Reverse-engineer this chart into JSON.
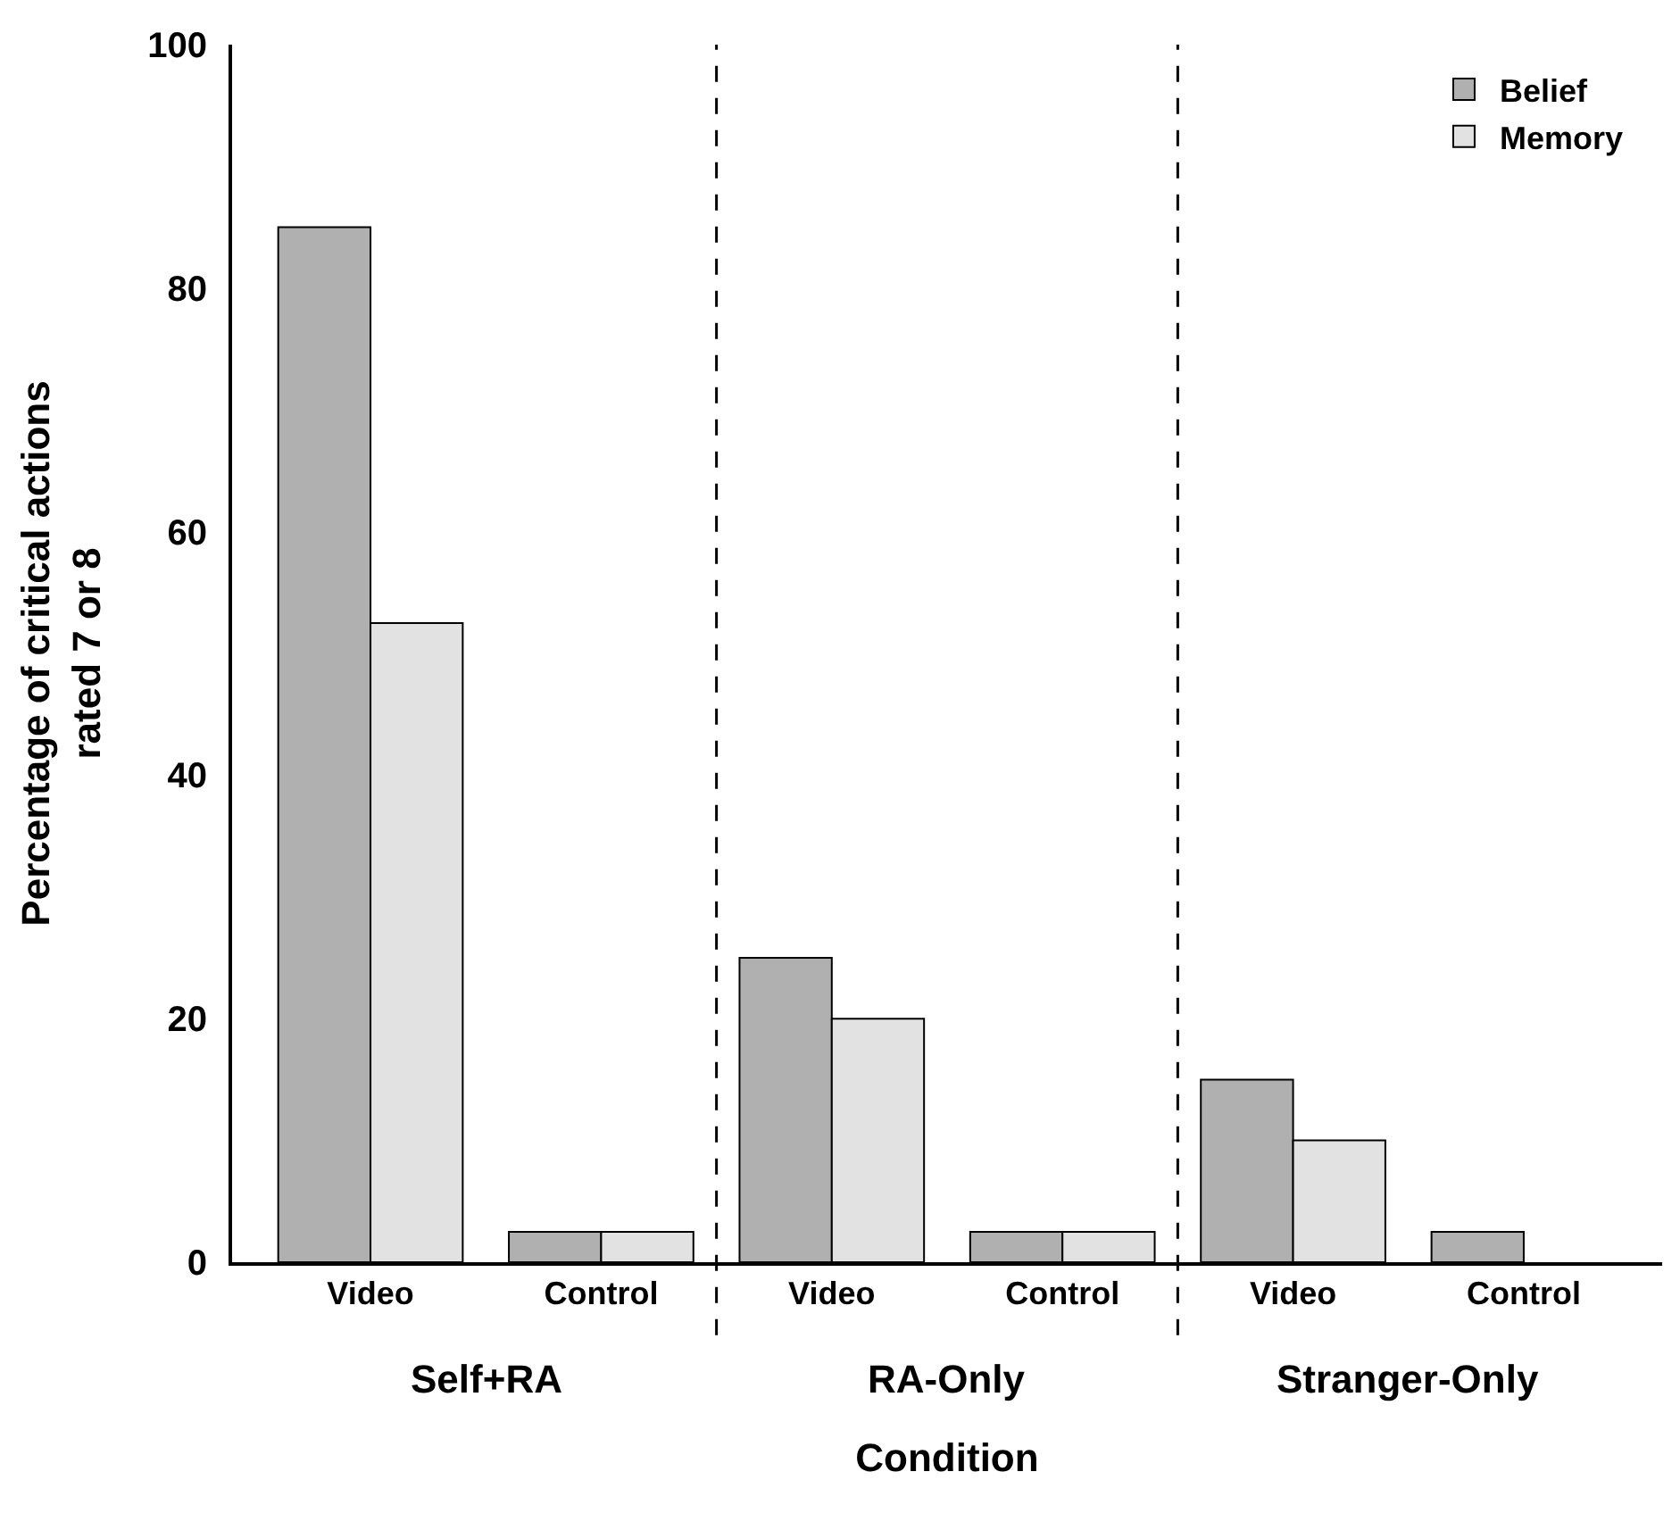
{
  "chart_data": {
    "type": "bar",
    "xlabel": "Condition",
    "ylabel": "Percentage of critical actions\nrated 7 or 8",
    "categories": [
      "Video",
      "Control",
      "Video",
      "Control",
      "Video",
      "Control"
    ],
    "series": [
      {
        "name": "Belief",
        "color": "#b0b0b0",
        "values": [
          85,
          2.5,
          25,
          2.5,
          15,
          2.5
        ]
      },
      {
        "name": "Memory",
        "color": "#e1e2e1",
        "values": [
          52.5,
          2.5,
          20,
          2.5,
          10,
          0
        ]
      }
    ],
    "ylim": [
      0,
      100
    ],
    "yticks": [
      0,
      20,
      40,
      60,
      80,
      100
    ],
    "legend": "top right",
    "annotations": [
      "Self+RA",
      "RA-Only",
      "Stranger-Only"
    ]
  }
}
